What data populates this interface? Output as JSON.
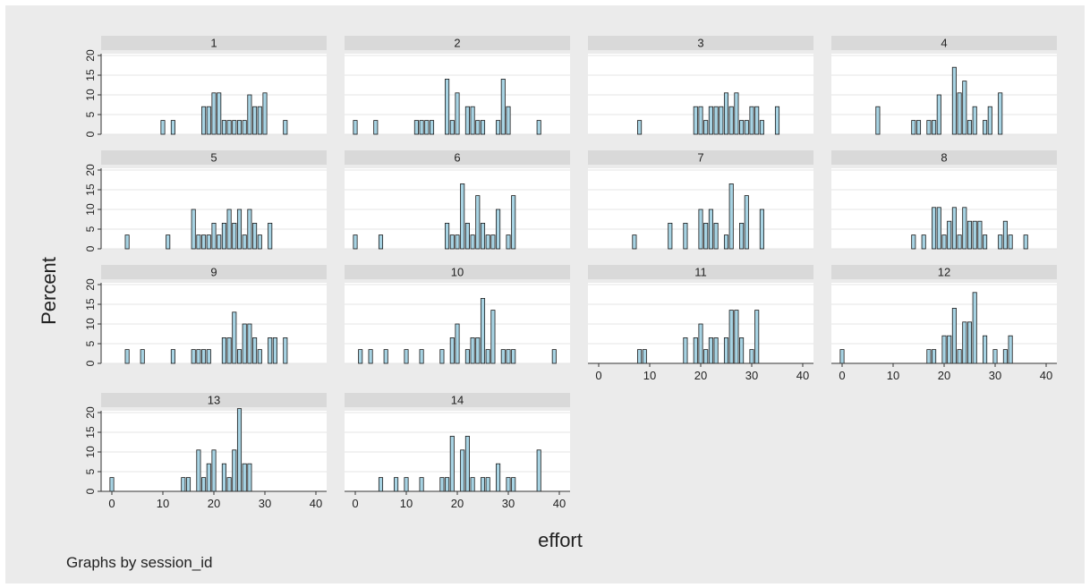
{
  "chart_data": {
    "type": "bar",
    "subtype": "histogram-small-multiples",
    "xlabel": "effort",
    "ylabel": "Percent",
    "note": "Graphs by session_id",
    "xlim": [
      0,
      40
    ],
    "ylim": [
      0,
      20
    ],
    "x_ticks": [
      "0",
      "10",
      "20",
      "30",
      "40"
    ],
    "y_ticks": [
      "0",
      "5",
      "10",
      "15",
      "20"
    ],
    "grid": true,
    "colors": {
      "bar_fill": "#a7d3e3",
      "bar_stroke": "#1a1a1a",
      "panel_header": "#d9d9d9",
      "outer_background": "#ebebeb",
      "plot_background": "#ffffff",
      "gridline": "#e4e4e4"
    },
    "panels": [
      {
        "title": "1",
        "bins": [
          [
            10,
            3.5
          ],
          [
            12,
            3.5
          ],
          [
            18,
            7
          ],
          [
            19,
            7
          ],
          [
            20,
            10.5
          ],
          [
            21,
            10.5
          ],
          [
            22,
            3.5
          ],
          [
            23,
            3.5
          ],
          [
            24,
            3.5
          ],
          [
            25,
            3.5
          ],
          [
            26,
            3.5
          ],
          [
            27,
            10
          ],
          [
            28,
            7
          ],
          [
            29,
            7
          ],
          [
            30,
            10.5
          ],
          [
            34,
            3.5
          ]
        ]
      },
      {
        "title": "2",
        "bins": [
          [
            0,
            3.5
          ],
          [
            4,
            3.5
          ],
          [
            12,
            3.5
          ],
          [
            13,
            3.5
          ],
          [
            14,
            3.5
          ],
          [
            15,
            3.5
          ],
          [
            18,
            14
          ],
          [
            19,
            3.5
          ],
          [
            20,
            10.5
          ],
          [
            22,
            7
          ],
          [
            23,
            7
          ],
          [
            24,
            3.5
          ],
          [
            25,
            3.5
          ],
          [
            28,
            3.5
          ],
          [
            29,
            14
          ],
          [
            30,
            7
          ],
          [
            36,
            3.5
          ]
        ]
      },
      {
        "title": "3",
        "bins": [
          [
            8,
            3.5
          ],
          [
            19,
            7
          ],
          [
            20,
            7
          ],
          [
            21,
            3.5
          ],
          [
            22,
            7
          ],
          [
            23,
            7
          ],
          [
            24,
            7
          ],
          [
            25,
            10.5
          ],
          [
            26,
            7
          ],
          [
            27,
            10.5
          ],
          [
            28,
            3.5
          ],
          [
            29,
            3.5
          ],
          [
            30,
            7
          ],
          [
            31,
            7
          ],
          [
            32,
            3.5
          ],
          [
            35,
            7
          ]
        ]
      },
      {
        "title": "4",
        "bins": [
          [
            7,
            7
          ],
          [
            14,
            3.5
          ],
          [
            15,
            3.5
          ],
          [
            17,
            3.5
          ],
          [
            18,
            3.5
          ],
          [
            19,
            10
          ],
          [
            22,
            17
          ],
          [
            23,
            10.5
          ],
          [
            24,
            13.5
          ],
          [
            25,
            3.5
          ],
          [
            26,
            7
          ],
          [
            28,
            3.5
          ],
          [
            29,
            7
          ],
          [
            31,
            10.5
          ]
        ]
      },
      {
        "title": "5",
        "bins": [
          [
            3,
            3.5
          ],
          [
            11,
            3.5
          ],
          [
            16,
            10
          ],
          [
            17,
            3.5
          ],
          [
            18,
            3.5
          ],
          [
            19,
            3.5
          ],
          [
            20,
            6.5
          ],
          [
            21,
            3.5
          ],
          [
            22,
            6.5
          ],
          [
            23,
            10
          ],
          [
            24,
            6.5
          ],
          [
            25,
            10
          ],
          [
            26,
            3.5
          ],
          [
            27,
            10
          ],
          [
            28,
            6.5
          ],
          [
            29,
            3.5
          ],
          [
            31,
            6.5
          ]
        ]
      },
      {
        "title": "6",
        "bins": [
          [
            0,
            3.5
          ],
          [
            5,
            3.5
          ],
          [
            18,
            6.5
          ],
          [
            19,
            3.5
          ],
          [
            20,
            3.5
          ],
          [
            21,
            16.5
          ],
          [
            22,
            6.5
          ],
          [
            23,
            3.5
          ],
          [
            24,
            13.5
          ],
          [
            25,
            6.5
          ],
          [
            26,
            3.5
          ],
          [
            27,
            3.5
          ],
          [
            28,
            10
          ],
          [
            30,
            3.5
          ],
          [
            31,
            13.5
          ]
        ]
      },
      {
        "title": "7",
        "bins": [
          [
            7,
            3.5
          ],
          [
            14,
            6.5
          ],
          [
            17,
            6.5
          ],
          [
            20,
            10
          ],
          [
            21,
            6.5
          ],
          [
            22,
            10
          ],
          [
            23,
            6.5
          ],
          [
            25,
            3.5
          ],
          [
            26,
            16.5
          ],
          [
            28,
            6.5
          ],
          [
            29,
            13.5
          ],
          [
            32,
            10
          ]
        ]
      },
      {
        "title": "8",
        "bins": [
          [
            14,
            3.5
          ],
          [
            16,
            3.5
          ],
          [
            18,
            10.5
          ],
          [
            19,
            10.5
          ],
          [
            20,
            3.5
          ],
          [
            21,
            7
          ],
          [
            22,
            10.5
          ],
          [
            23,
            3.5
          ],
          [
            24,
            10.5
          ],
          [
            25,
            7
          ],
          [
            26,
            7
          ],
          [
            27,
            7
          ],
          [
            28,
            3.5
          ],
          [
            31,
            3.5
          ],
          [
            32,
            7
          ],
          [
            33,
            3.5
          ],
          [
            36,
            3.5
          ]
        ]
      },
      {
        "title": "9",
        "bins": [
          [
            3,
            3.5
          ],
          [
            6,
            3.5
          ],
          [
            12,
            3.5
          ],
          [
            16,
            3.5
          ],
          [
            17,
            3.5
          ],
          [
            18,
            3.5
          ],
          [
            19,
            3.5
          ],
          [
            22,
            6.5
          ],
          [
            23,
            6.5
          ],
          [
            24,
            13
          ],
          [
            25,
            3.5
          ],
          [
            26,
            10
          ],
          [
            27,
            10
          ],
          [
            28,
            6.5
          ],
          [
            29,
            3.5
          ],
          [
            31,
            6.5
          ],
          [
            32,
            6.5
          ],
          [
            34,
            6.5
          ]
        ]
      },
      {
        "title": "10",
        "bins": [
          [
            1,
            3.5
          ],
          [
            3,
            3.5
          ],
          [
            6,
            3.5
          ],
          [
            10,
            3.5
          ],
          [
            13,
            3.5
          ],
          [
            17,
            3.5
          ],
          [
            19,
            6.5
          ],
          [
            20,
            10
          ],
          [
            22,
            3.5
          ],
          [
            23,
            6.5
          ],
          [
            24,
            6.5
          ],
          [
            25,
            16.5
          ],
          [
            26,
            3.5
          ],
          [
            27,
            13.5
          ],
          [
            29,
            3.5
          ],
          [
            30,
            3.5
          ],
          [
            31,
            3.5
          ],
          [
            39,
            3.5
          ]
        ]
      },
      {
        "title": "11",
        "bins": [
          [
            8,
            3.5
          ],
          [
            9,
            3.5
          ],
          [
            17,
            6.5
          ],
          [
            19,
            6.5
          ],
          [
            20,
            10
          ],
          [
            21,
            3.5
          ],
          [
            22,
            6.5
          ],
          [
            23,
            6.5
          ],
          [
            25,
            6.5
          ],
          [
            26,
            13.5
          ],
          [
            27,
            13.5
          ],
          [
            28,
            6.5
          ],
          [
            30,
            3.5
          ],
          [
            31,
            13.5
          ]
        ]
      },
      {
        "title": "12",
        "bins": [
          [
            0,
            3.5
          ],
          [
            17,
            3.5
          ],
          [
            18,
            3.5
          ],
          [
            20,
            7
          ],
          [
            21,
            7
          ],
          [
            22,
            14
          ],
          [
            23,
            3.5
          ],
          [
            24,
            10.5
          ],
          [
            25,
            10.5
          ],
          [
            26,
            18
          ],
          [
            28,
            7
          ],
          [
            30,
            3.5
          ],
          [
            32,
            3.5
          ],
          [
            33,
            7
          ]
        ]
      },
      {
        "title": "13",
        "bins": [
          [
            0,
            3.5
          ],
          [
            14,
            3.5
          ],
          [
            15,
            3.5
          ],
          [
            17,
            10.5
          ],
          [
            18,
            3.5
          ],
          [
            19,
            7
          ],
          [
            20,
            10.5
          ],
          [
            22,
            7
          ],
          [
            23,
            3.5
          ],
          [
            24,
            10.5
          ],
          [
            25,
            21
          ],
          [
            26,
            7
          ],
          [
            27,
            7
          ]
        ]
      },
      {
        "title": "14",
        "bins": [
          [
            5,
            3.5
          ],
          [
            8,
            3.5
          ],
          [
            10,
            3.5
          ],
          [
            13,
            3.5
          ],
          [
            17,
            3.5
          ],
          [
            18,
            3.5
          ],
          [
            19,
            14
          ],
          [
            21,
            10.5
          ],
          [
            22,
            14
          ],
          [
            23,
            3.5
          ],
          [
            25,
            3.5
          ],
          [
            26,
            3.5
          ],
          [
            28,
            7
          ],
          [
            30,
            3.5
          ],
          [
            31,
            3.5
          ],
          [
            36,
            10.5
          ]
        ]
      }
    ]
  }
}
